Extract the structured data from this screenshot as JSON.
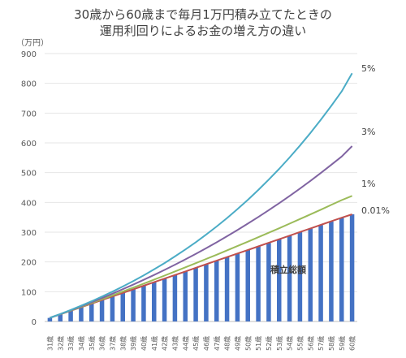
{
  "title_line1": "30歳から60歳まで毎月1万円積み立てたときの",
  "title_line2": "運用利回りによるお金の増え方の違い",
  "chart_data": {
    "type": "bar",
    "title": "30歳から60歳まで毎月1万円積み立てたときの 運用利回りによるお金の増え方の違い",
    "ylabel": "（万円）",
    "xlabel": "",
    "ylim": [
      0,
      900
    ],
    "yticks": [
      0,
      100,
      200,
      300,
      400,
      500,
      600,
      700,
      800,
      900
    ],
    "grid": true,
    "categories": [
      "31歳",
      "32歳",
      "33歳",
      "34歳",
      "35歳",
      "36歳",
      "37歳",
      "38歳",
      "39歳",
      "40歳",
      "41歳",
      "42歳",
      "43歳",
      "44歳",
      "45歳",
      "46歳",
      "47歳",
      "48歳",
      "49歳",
      "50歳",
      "51歳",
      "52歳",
      "53歳",
      "54歳",
      "55歳",
      "56歳",
      "57歳",
      "58歳",
      "59歳",
      "60歳"
    ],
    "bar_series": {
      "name": "積立総額",
      "color": "#4472C4",
      "values": [
        12,
        24,
        36,
        48,
        60,
        72,
        84,
        96,
        108,
        120,
        132,
        144,
        156,
        168,
        180,
        192,
        204,
        216,
        228,
        240,
        252,
        264,
        276,
        288,
        300,
        312,
        324,
        336,
        348,
        360
      ]
    },
    "series": [
      {
        "name": "5%",
        "color": "#4BACC6",
        "values": [
          12.3,
          25.2,
          38.8,
          53.0,
          68.0,
          83.7,
          100.2,
          117.6,
          135.8,
          155.0,
          175.1,
          196.2,
          218.4,
          241.8,
          266.3,
          292.0,
          319.1,
          347.5,
          377.4,
          408.8,
          441.7,
          476.4,
          512.8,
          551.0,
          591.1,
          633.3,
          677.6,
          724.1,
          773.0,
          834.0
        ]
      },
      {
        "name": "3%",
        "color": "#8064A2",
        "values": [
          12.2,
          24.7,
          37.6,
          50.9,
          64.7,
          78.8,
          93.4,
          108.5,
          123.9,
          139.9,
          156.3,
          173.3,
          190.7,
          208.7,
          227.2,
          246.3,
          266.0,
          286.3,
          307.2,
          328.8,
          350.9,
          373.8,
          397.3,
          421.6,
          446.5,
          472.3,
          498.8,
          526.1,
          554.3,
          589.0
        ]
      },
      {
        "name": "1%",
        "color": "#9BBB59",
        "values": [
          12.1,
          24.3,
          36.7,
          49.2,
          61.8,
          74.6,
          87.6,
          100.6,
          113.8,
          127.2,
          140.6,
          154.2,
          167.9,
          181.8,
          195.8,
          210.0,
          224.3,
          238.8,
          253.4,
          268.1,
          283.0,
          298.0,
          313.2,
          328.6,
          344.1,
          359.7,
          375.5,
          391.5,
          407.6,
          422.0
        ]
      },
      {
        "name": "0.01%",
        "color": "#C0504D",
        "values": [
          12.0,
          24.0,
          36.0,
          48.0,
          60.0,
          72.0,
          84.1,
          96.1,
          108.1,
          120.1,
          132.1,
          144.1,
          156.1,
          168.1,
          180.2,
          192.2,
          204.2,
          216.2,
          228.3,
          240.3,
          252.3,
          264.3,
          276.4,
          288.4,
          300.5,
          312.5,
          324.5,
          336.6,
          348.6,
          360.0
        ]
      }
    ]
  }
}
